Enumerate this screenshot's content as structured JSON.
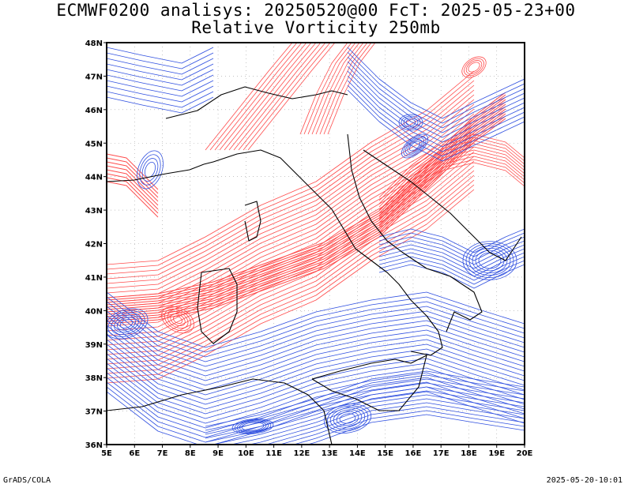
{
  "header": {
    "title_line1": "ECMWF0200 analisys: 20250520@00 FcT: 2025-05-23+00",
    "title_line2": "Relative Vorticity 250mb"
  },
  "map": {
    "lon_labels": [
      "5E",
      "6E",
      "7E",
      "8E",
      "9E",
      "10E",
      "11E",
      "12E",
      "13E",
      "14E",
      "15E",
      "16E",
      "17E",
      "18E",
      "19E",
      "20E"
    ],
    "lat_labels": [
      "48N",
      "47N",
      "46N",
      "45N",
      "44N",
      "43N",
      "42N",
      "41N",
      "40N",
      "39N",
      "38N",
      "37N",
      "36N"
    ],
    "lon_range": [
      5,
      20
    ],
    "lat_range": [
      36,
      48
    ],
    "colors": {
      "positive": "#ff4a4a",
      "negative": "#3050e0",
      "coast": "#000000",
      "grid": "#a0a0a0"
    }
  },
  "footer": {
    "left": "GrADS/COLA",
    "right": "2025-05-20-10:01"
  }
}
